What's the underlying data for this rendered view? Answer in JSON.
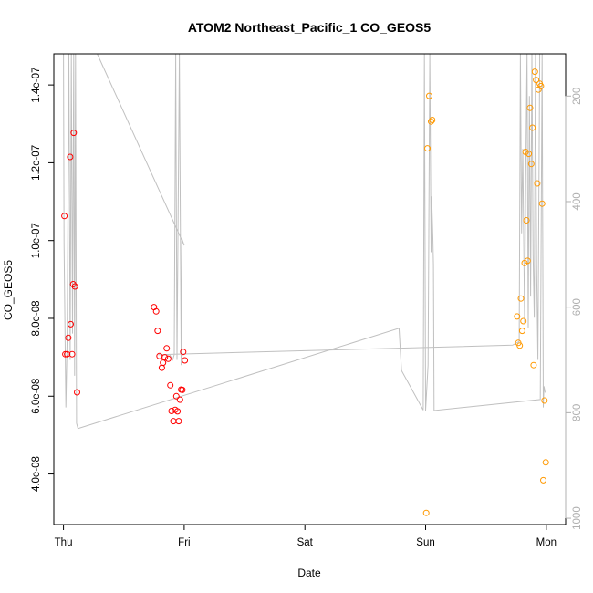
{
  "chart_data": {
    "type": "scatter",
    "title": "ATOM2 Northeast_Pacific_1 CO_GEOS5",
    "xlabel": "Date",
    "ylabel": "CO_GEOS5",
    "x_ticks": [
      "Thu",
      "Fri",
      "Sat",
      "Sun",
      "Mon"
    ],
    "x_tick_days": [
      0,
      1,
      2,
      3,
      4
    ],
    "xlim": [
      -0.08,
      4.16
    ],
    "ylim": [
      2.7e-08,
      1.48e-07
    ],
    "y_ticks": [
      4e-08,
      6e-08,
      8e-08,
      1e-07,
      1.2e-07,
      1.4e-07
    ],
    "y_tick_labels": [
      "4.0e-08",
      "6.0e-08",
      "8.0e-08",
      "1.0e-07",
      "1.2e-07",
      "1.4e-07"
    ],
    "y2_ticks": [
      200,
      400,
      600,
      800,
      1000
    ],
    "y2_tick_labels": [
      "200",
      "400",
      "600",
      "800",
      "1000"
    ],
    "y2lim": [
      1012,
      120
    ],
    "colors": {
      "series_1": "#ff0000",
      "series_2": "#ff9900",
      "pressure_line": "#c0c0c0",
      "axis": "#000000"
    },
    "series": [
      {
        "color": "#ff0000",
        "points": [
          [
            0.008,
            1.063e-07
          ],
          [
            0.015,
            7.08e-08
          ],
          [
            0.03,
            7.08e-08
          ],
          [
            0.04,
            7.5e-08
          ],
          [
            0.055,
            1.215e-07
          ],
          [
            0.06,
            7.85e-08
          ],
          [
            0.072,
            7.08e-08
          ],
          [
            0.08,
            8.88e-08
          ],
          [
            0.085,
            1.277e-07
          ],
          [
            0.095,
            8.82e-08
          ],
          [
            0.113,
            6.1e-08
          ],
          [
            0.75,
            8.29e-08
          ],
          [
            0.768,
            8.18e-08
          ],
          [
            0.78,
            7.68e-08
          ],
          [
            0.795,
            7.03e-08
          ],
          [
            0.815,
            6.73e-08
          ],
          [
            0.825,
            6.86e-08
          ],
          [
            0.84,
            7e-08
          ],
          [
            0.855,
            7.23e-08
          ],
          [
            0.868,
            6.96e-08
          ],
          [
            0.885,
            6.28e-08
          ],
          [
            0.895,
            5.62e-08
          ],
          [
            0.91,
            5.36e-08
          ],
          [
            0.925,
            5.65e-08
          ],
          [
            0.935,
            6e-08
          ],
          [
            0.945,
            5.61e-08
          ],
          [
            0.955,
            5.36e-08
          ],
          [
            0.965,
            5.91e-08
          ],
          [
            0.975,
            6.17e-08
          ],
          [
            0.985,
            6.16e-08
          ],
          [
            0.992,
            7.14e-08
          ],
          [
            1.005,
            6.92e-08
          ]
        ]
      },
      {
        "color": "#ff9900",
        "points": [
          [
            3.005,
            3e-08
          ],
          [
            3.015,
            1.237e-07
          ],
          [
            3.03,
            1.372e-07
          ],
          [
            3.045,
            1.306e-07
          ],
          [
            3.055,
            1.31e-07
          ],
          [
            3.758,
            8.05e-08
          ],
          [
            3.768,
            7.37e-08
          ],
          [
            3.78,
            7.3e-08
          ],
          [
            3.79,
            8.51e-08
          ],
          [
            3.8,
            7.68e-08
          ],
          [
            3.81,
            7.93e-08
          ],
          [
            3.82,
            9.42e-08
          ],
          [
            3.828,
            1.228e-07
          ],
          [
            3.835,
            1.052e-07
          ],
          [
            3.845,
            9.48e-08
          ],
          [
            3.855,
            1.223e-07
          ],
          [
            3.865,
            1.341e-07
          ],
          [
            3.875,
            1.197e-07
          ],
          [
            3.885,
            1.29e-07
          ],
          [
            3.895,
            6.8e-08
          ],
          [
            3.905,
            1.434e-07
          ],
          [
            3.915,
            1.413e-07
          ],
          [
            3.925,
            1.147e-07
          ],
          [
            3.935,
            1.388e-07
          ],
          [
            3.945,
            1.403e-07
          ],
          [
            3.955,
            1.397e-07
          ],
          [
            3.965,
            1.095e-07
          ],
          [
            3.975,
            3.84e-08
          ],
          [
            3.985,
            5.89e-08
          ],
          [
            3.995,
            4.3e-08
          ]
        ]
      }
    ],
    "pressure_line": [
      [
        0.0,
        120
      ],
      [
        0.005,
        480
      ],
      [
        0.02,
        790
      ],
      [
        0.03,
        660
      ],
      [
        0.045,
        120
      ],
      [
        0.055,
        700
      ],
      [
        0.065,
        120
      ],
      [
        0.075,
        650
      ],
      [
        0.085,
        120
      ],
      [
        0.092,
        730
      ],
      [
        0.1,
        120
      ],
      [
        0.108,
        820
      ],
      [
        0.12,
        830
      ],
      [
        2.78,
        640
      ],
      [
        2.8,
        720
      ],
      [
        2.98,
        795
      ],
      [
        2.99,
        120
      ],
      [
        3.0,
        796
      ],
      [
        3.02,
        710
      ],
      [
        3.035,
        120
      ],
      [
        3.045,
        496
      ],
      [
        3.05,
        390
      ],
      [
        3.06,
        470
      ],
      [
        3.065,
        520
      ],
      [
        3.07,
        796
      ],
      [
        3.95,
        775
      ],
      [
        3.965,
        120
      ],
      [
        3.975,
        790
      ],
      [
        3.98,
        750
      ],
      [
        3.99,
        762
      ]
    ],
    "pressure_line_2": [
      [
        0.28,
        120
      ],
      [
        1.0,
        483
      ],
      [
        0.98,
        470
      ],
      [
        0.975,
        710
      ],
      [
        0.96,
        120
      ],
      [
        0.94,
        700
      ],
      [
        0.93,
        120
      ],
      [
        0.918,
        690
      ],
      [
        0.905,
        700
      ],
      [
        0.88,
        690
      ],
      [
        0.83,
        690
      ],
      [
        0.8,
        690
      ],
      [
        0.785,
        690
      ],
      [
        3.72,
        672
      ],
      [
        3.775,
        665
      ],
      [
        3.785,
        120
      ],
      [
        3.795,
        460
      ],
      [
        3.805,
        300
      ],
      [
        3.82,
        630
      ],
      [
        3.83,
        350
      ],
      [
        3.84,
        120
      ],
      [
        3.85,
        640
      ],
      [
        3.86,
        200
      ],
      [
        3.87,
        580
      ],
      [
        3.88,
        120
      ],
      [
        3.89,
        500
      ],
      [
        3.9,
        620
      ],
      [
        3.91,
        120
      ],
      [
        3.92,
        520
      ],
      [
        3.93,
        700
      ],
      [
        3.945,
        120
      ]
    ]
  }
}
